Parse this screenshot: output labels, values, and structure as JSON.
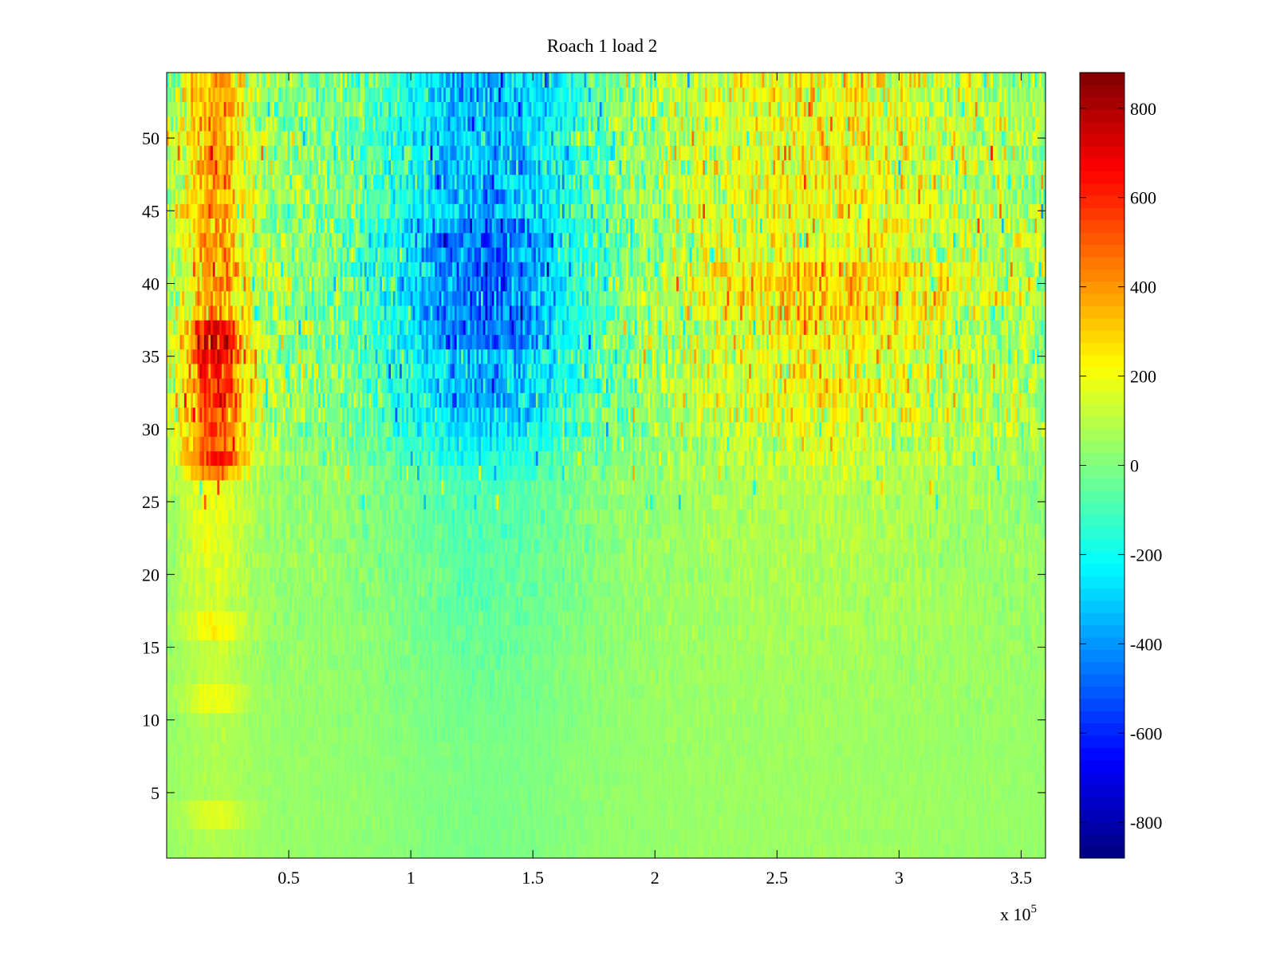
{
  "chart_data": {
    "type": "heatmap",
    "title": "Roach 1 load 2",
    "xlabel": "",
    "ylabel": "",
    "x_exponent_label": "x 10",
    "x_exponent_power": "5",
    "xlim": [
      0,
      3.6
    ],
    "ylim": [
      0.5,
      54.5
    ],
    "rows": 54,
    "x_ticks": [
      {
        "value": 0.5,
        "label": "0.5"
      },
      {
        "value": 1,
        "label": "1"
      },
      {
        "value": 1.5,
        "label": "1.5"
      },
      {
        "value": 2,
        "label": "2"
      },
      {
        "value": 2.5,
        "label": "2.5"
      },
      {
        "value": 3,
        "label": "3"
      },
      {
        "value": 3.5,
        "label": "3.5"
      }
    ],
    "y_ticks": [
      {
        "value": 5,
        "label": "5"
      },
      {
        "value": 10,
        "label": "10"
      },
      {
        "value": 15,
        "label": "15"
      },
      {
        "value": 20,
        "label": "20"
      },
      {
        "value": 25,
        "label": "25"
      },
      {
        "value": 30,
        "label": "30"
      },
      {
        "value": 35,
        "label": "35"
      },
      {
        "value": 40,
        "label": "40"
      },
      {
        "value": 45,
        "label": "45"
      },
      {
        "value": 50,
        "label": "50"
      }
    ],
    "colorbar": {
      "colormap": "jet",
      "range": [
        -880,
        880
      ],
      "ticks": [
        {
          "value": 800,
          "label": "800"
        },
        {
          "value": 600,
          "label": "600"
        },
        {
          "value": 400,
          "label": "400"
        },
        {
          "value": 200,
          "label": "200"
        },
        {
          "value": 0,
          "label": "0"
        },
        {
          "value": -200,
          "label": "-200"
        },
        {
          "value": -400,
          "label": "-400"
        },
        {
          "value": -600,
          "label": "-600"
        },
        {
          "value": -800,
          "label": "-800"
        }
      ]
    }
  }
}
